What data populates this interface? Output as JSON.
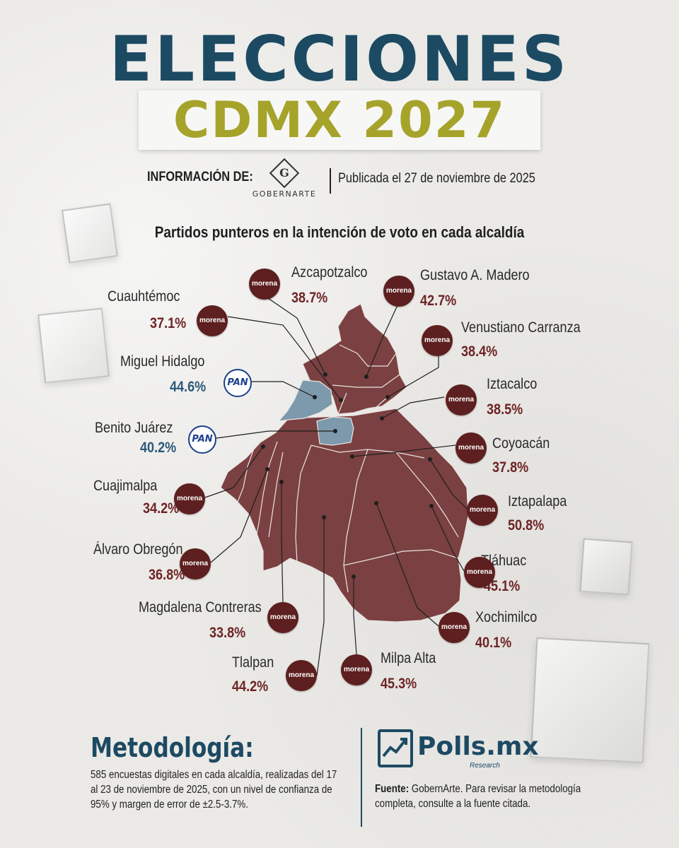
{
  "header": {
    "title_line1": "ELECCIONES",
    "title_line2": "CDMX 2027",
    "info_label": "INFORMACIÓN DE:",
    "source_logo_text": "GOBERNARTE",
    "source_logo_letter": "G",
    "publish_date": "Publicada el 27 de noviembre de 2025"
  },
  "map": {
    "subtitle": "Partidos punteros en la intención de voto en cada alcaldía",
    "colors": {
      "morena": "#7b4041",
      "pan": "#7d99ac"
    },
    "alcaldias": [
      {
        "name": "Azcapotzalco",
        "pct": "38.7%",
        "party": "morena"
      },
      {
        "name": "Gustavo A. Madero",
        "pct": "42.7%",
        "party": "morena"
      },
      {
        "name": "Cuauhtémoc",
        "pct": "37.1%",
        "party": "morena"
      },
      {
        "name": "Venustiano Carranza",
        "pct": "38.4%",
        "party": "morena"
      },
      {
        "name": "Miguel Hidalgo",
        "pct": "44.6%",
        "party": "pan"
      },
      {
        "name": "Iztacalco",
        "pct": "38.5%",
        "party": "morena"
      },
      {
        "name": "Benito Juárez",
        "pct": "40.2%",
        "party": "pan"
      },
      {
        "name": "Coyoacán",
        "pct": "37.8%",
        "party": "morena"
      },
      {
        "name": "Cuajimalpa",
        "pct": "34.2%",
        "party": "morena"
      },
      {
        "name": "Iztapalapa",
        "pct": "50.8%",
        "party": "morena"
      },
      {
        "name": "Álvaro Obregón",
        "pct": "36.8%",
        "party": "morena"
      },
      {
        "name": "Tláhuac",
        "pct": "45.1%",
        "party": "morena"
      },
      {
        "name": "Magdalena Contreras",
        "pct": "33.8%",
        "party": "morena"
      },
      {
        "name": "Xochimilco",
        "pct": "40.1%",
        "party": "morena"
      },
      {
        "name": "Tlalpan",
        "pct": "44.2%",
        "party": "morena"
      },
      {
        "name": "Milpa Alta",
        "pct": "45.3%",
        "party": "morena"
      }
    ],
    "party_logo_text": {
      "morena": "morena",
      "pan": "PAN"
    }
  },
  "methodology": {
    "title": "Metodología:",
    "text": "585 encuestas digitales en cada alcaldía, realizadas del 17 al 23 de noviembre de 2025, con un nivel de confianza de 95% y margen de error de ±2.5-3.7%."
  },
  "footer": {
    "brand": "Polls.mx",
    "brand_sub": "Research",
    "source_label": "Fuente:",
    "source_text": "GobernArte. Para revisar la metodología completa, consulte a la fuente citada."
  }
}
